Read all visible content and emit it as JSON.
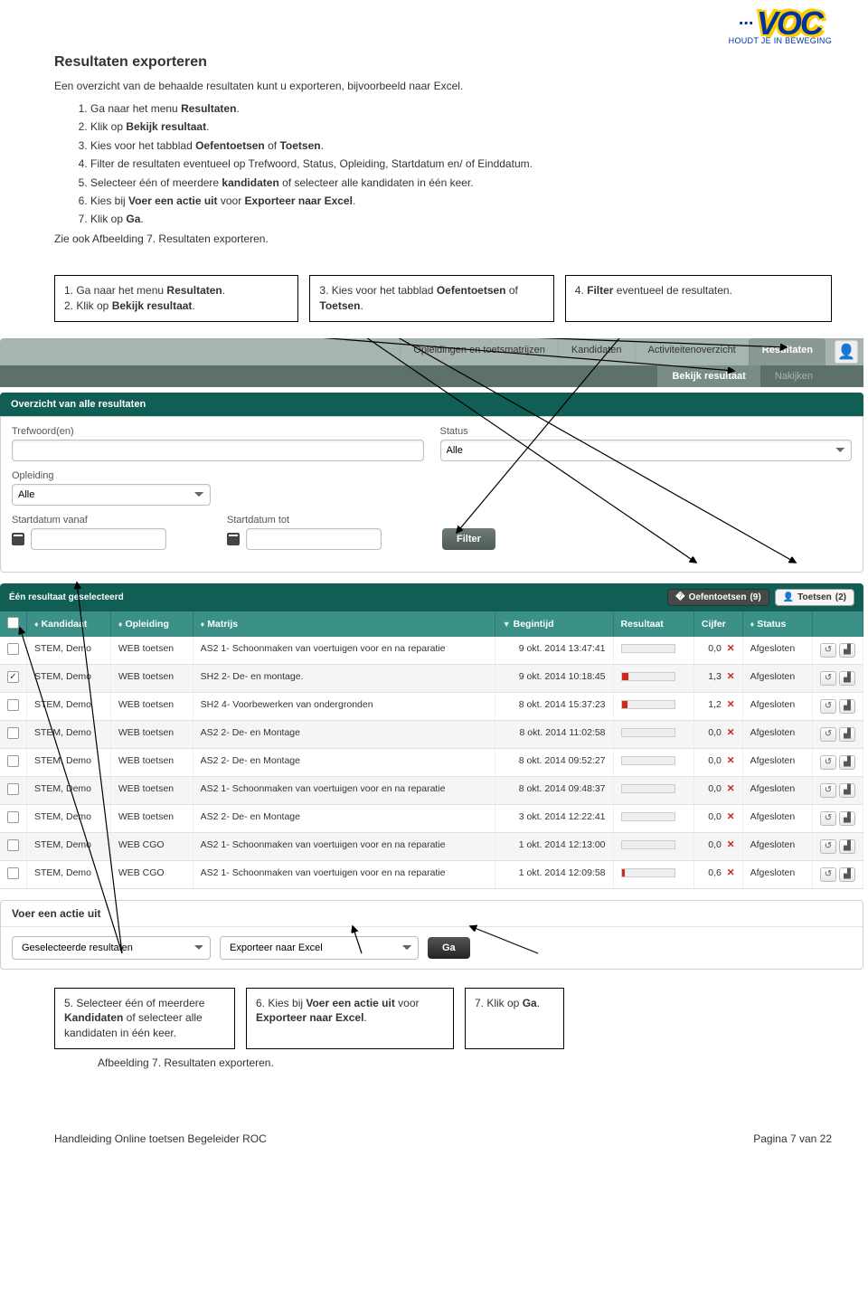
{
  "logo": {
    "dots": "...",
    "main": "VOC",
    "sub": "HOUDT JE IN BEWEGING"
  },
  "section_title": "Resultaten exporteren",
  "intro": "Een overzicht van de behaalde resultaten kunt u exporteren, bijvoorbeeld naar Excel.",
  "steps_plain": [
    "Ga naar het menu ",
    "Klik op ",
    "Kies voor het tabblad ",
    "Filter de resultaten eventueel op Trefwoord, Status, Opleiding, Startdatum en/ of Einddatum.",
    "Selecteer één of meerdere ",
    "Kies bij ",
    "Klik op "
  ],
  "steps_bold": {
    "s1": "Resultaten",
    "s2": "Bekijk resultaat",
    "s3a": "Oefentoetsen",
    "s3b": "Toetsen",
    "s5": "kandidaten",
    "s6a": "Voer een actie uit",
    "s6b": "Exporteer naar Excel",
    "s7": "Ga"
  },
  "step5_tail": " of selecteer alle kandidaten in één keer.",
  "step6_mid": " voor ",
  "after_steps": "Zie ook Afbeelding 7. Resultaten exporteren.",
  "callouts_top": [
    "1. Ga naar het menu <b>Resultaten</b>.\n2. Klik op <b>Bekijk resultaat</b>.",
    "3. Kies voor het tabblad <b>Oefentoetsen</b> of <b>Toetsen</b>.",
    "4. <b>Filter</b> eventueel de resultaten."
  ],
  "callouts_bottom": [
    "5. Selecteer één of meerdere <b>Kandidaten</b> of selecteer alle kandidaten in één keer.",
    "6. Kies bij <b>Voer een actie uit</b> voor <b>Exporteer naar Excel</b>.",
    "7. Klik op <b>Ga</b>."
  ],
  "nav": {
    "tabs": [
      "Opleidingen en toetsmatrijzen",
      "Kandidaten",
      "Activiteitenoverzicht",
      "Resultaten"
    ],
    "sub": [
      "Bekijk resultaat",
      "Nakijken"
    ]
  },
  "panel1_title": "Overzicht van alle resultaten",
  "filters": {
    "trefwoord": "Trefwoord(en)",
    "status": "Status",
    "status_val": "Alle",
    "opleiding": "Opleiding",
    "opleiding_val": "Alle",
    "start_vanaf": "Startdatum vanaf",
    "start_tot": "Startdatum tot",
    "filter_btn": "Filter"
  },
  "result_banner": "Één resultaat geselecteerd",
  "pills": {
    "oef": "Oefentoetsen",
    "oef_n": "(9)",
    "toe": "Toetsen",
    "toe_n": "(2)"
  },
  "columns": [
    "",
    "Kandidaat",
    "Opleiding",
    "Matrijs",
    "Begintijd",
    "Resultaat",
    "Cijfer",
    "Status",
    ""
  ],
  "rows": [
    {
      "check": false,
      "k": "STEM, Demo",
      "o": "WEB toetsen",
      "m": "AS2 1- Schoonmaken van voertuigen voor en na reparatie",
      "t": "9 okt. 2014 13:47:41",
      "bar": "v0",
      "c": "0,0",
      "s": "Afgesloten"
    },
    {
      "check": true,
      "k": "STEM, Demo",
      "o": "WEB toetsen",
      "m": "SH2 2- De- en montage.",
      "t": "9 okt. 2014 10:18:45",
      "bar": "v13",
      "c": "1,3",
      "s": "Afgesloten"
    },
    {
      "check": false,
      "k": "STEM, Demo",
      "o": "WEB toetsen",
      "m": "SH2 4- Voorbewerken van ondergronden",
      "t": "8 okt. 2014 15:37:23",
      "bar": "v12",
      "c": "1,2",
      "s": "Afgesloten"
    },
    {
      "check": false,
      "k": "STEM, Demo",
      "o": "WEB toetsen",
      "m": "AS2 2- De- en Montage",
      "t": "8 okt. 2014 11:02:58",
      "bar": "v0",
      "c": "0,0",
      "s": "Afgesloten"
    },
    {
      "check": false,
      "k": "STEM, Demo",
      "o": "WEB toetsen",
      "m": "AS2 2- De- en Montage",
      "t": "8 okt. 2014 09:52:27",
      "bar": "v0",
      "c": "0,0",
      "s": "Afgesloten"
    },
    {
      "check": false,
      "k": "STEM, Demo",
      "o": "WEB toetsen",
      "m": "AS2 1- Schoonmaken van voertuigen voor en na reparatie",
      "t": "8 okt. 2014 09:48:37",
      "bar": "v0",
      "c": "0,0",
      "s": "Afgesloten"
    },
    {
      "check": false,
      "k": "STEM, Demo",
      "o": "WEB toetsen",
      "m": "AS2 2- De- en Montage",
      "t": "3 okt. 2014 12:22:41",
      "bar": "v0",
      "c": "0,0",
      "s": "Afgesloten"
    },
    {
      "check": false,
      "k": "STEM, Demo",
      "o": "WEB CGO",
      "m": "AS2 1- Schoonmaken van voertuigen voor en na reparatie",
      "t": "1 okt. 2014 12:13:00",
      "bar": "v0",
      "c": "0,0",
      "s": "Afgesloten"
    },
    {
      "check": false,
      "k": "STEM, Demo",
      "o": "WEB CGO",
      "m": "AS2 1- Schoonmaken van voertuigen voor en na reparatie",
      "t": "1 okt. 2014 12:09:58",
      "bar": "v06",
      "c": "0,6",
      "s": "Afgesloten"
    }
  ],
  "action": {
    "title": "Voer een actie uit",
    "sel1": "Geselecteerde resultaten",
    "sel2": "Exporteer naar Excel",
    "go": "Ga"
  },
  "caption": "Afbeelding 7. Resultaten exporteren.",
  "footer_left": "Handleiding Online toetsen Begeleider ROC",
  "footer_right": "Pagina 7 van 22"
}
